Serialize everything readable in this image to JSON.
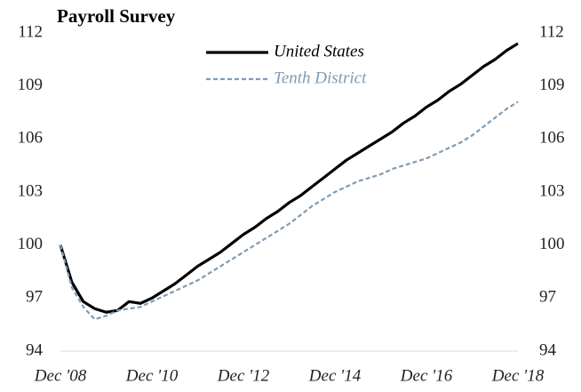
{
  "chart_data": {
    "type": "line",
    "title": "Payroll Survey",
    "categories": [
      "Dec '08",
      null,
      null,
      null,
      null,
      null,
      null,
      null,
      "Dec '10",
      null,
      null,
      null,
      null,
      null,
      null,
      null,
      "Dec '12",
      null,
      null,
      null,
      null,
      null,
      null,
      null,
      "Dec '14",
      null,
      null,
      null,
      null,
      null,
      null,
      null,
      "Dec '16",
      null,
      null,
      null,
      null,
      null,
      null,
      null,
      "Dec '18"
    ],
    "series": [
      {
        "name": "United States",
        "color": "#000000",
        "dash": false,
        "values": [
          100,
          97.9,
          96.8,
          96.4,
          96.2,
          96.3,
          96.8,
          96.7,
          97.0,
          97.4,
          97.8,
          98.3,
          98.8,
          99.2,
          99.6,
          100.1,
          100.6,
          101.0,
          101.5,
          101.9,
          102.4,
          102.8,
          103.3,
          103.8,
          104.3,
          104.8,
          105.2,
          105.6,
          106.0,
          106.4,
          106.9,
          107.3,
          107.8,
          108.2,
          108.7,
          109.1,
          109.6,
          110.1,
          110.5,
          111.0,
          111.4
        ]
      },
      {
        "name": "Tenth District",
        "color": "#7f9bb5",
        "dash": true,
        "values": [
          100,
          97.6,
          96.5,
          95.8,
          96.0,
          96.3,
          96.4,
          96.5,
          96.8,
          97.1,
          97.4,
          97.7,
          98.0,
          98.4,
          98.8,
          99.2,
          99.6,
          100.0,
          100.4,
          100.8,
          101.2,
          101.7,
          102.2,
          102.6,
          103.0,
          103.3,
          103.6,
          103.8,
          104.0,
          104.3,
          104.5,
          104.7,
          104.9,
          105.2,
          105.5,
          105.8,
          106.2,
          106.7,
          107.2,
          107.7,
          108.1
        ]
      }
    ],
    "ylim": [
      94,
      112
    ],
    "yticks": [
      94,
      97,
      100,
      103,
      106,
      109,
      112
    ],
    "y2lim": [
      94,
      112
    ],
    "y2ticks": [
      94,
      97,
      100,
      103,
      106,
      109,
      112
    ],
    "grid": false
  }
}
